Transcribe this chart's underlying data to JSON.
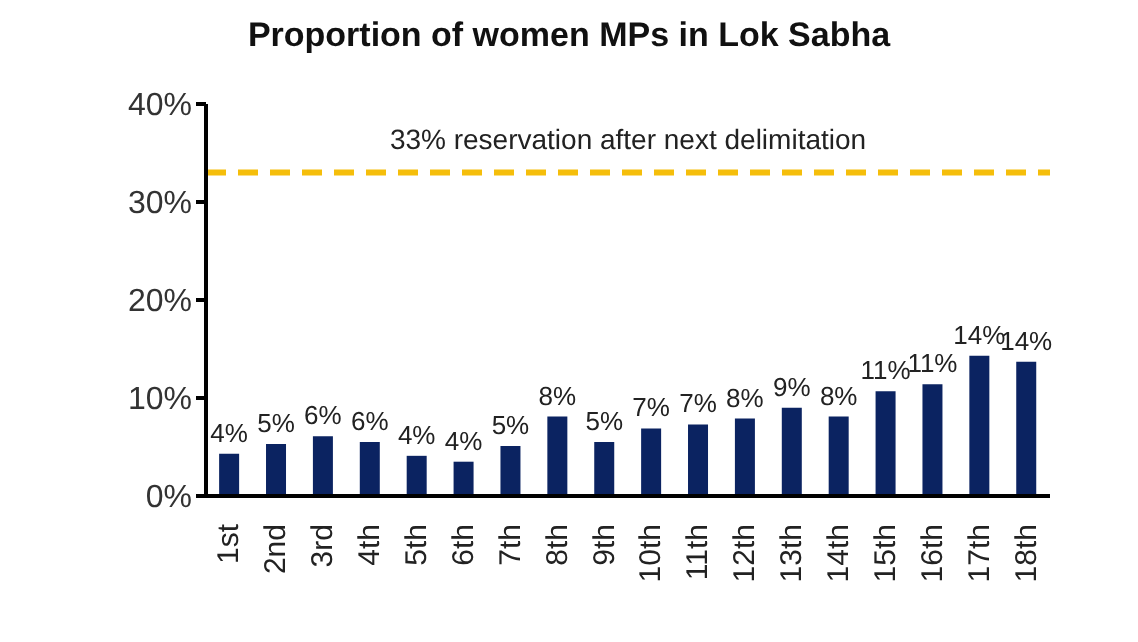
{
  "chart_data": {
    "type": "bar",
    "title": "Proportion of women MPs in Lok Sabha",
    "categories": [
      "1st",
      "2nd",
      "3rd",
      "4th",
      "5th",
      "6th",
      "7th",
      "8th",
      "9th",
      "10th",
      "11th",
      "12th",
      "13th",
      "14th",
      "15th",
      "16th",
      "17th",
      "18th"
    ],
    "values": [
      4.3,
      5.3,
      6.1,
      5.5,
      4.1,
      3.5,
      5.1,
      8.1,
      5.5,
      6.9,
      7.3,
      7.9,
      9.0,
      8.1,
      10.7,
      11.4,
      14.3,
      13.7
    ],
    "value_labels": [
      "4%",
      "5%",
      "6%",
      "6%",
      "4%",
      "4%",
      "5%",
      "8%",
      "5%",
      "7%",
      "7%",
      "8%",
      "9%",
      "8%",
      "11%",
      "11%",
      "14%",
      "14%"
    ],
    "color": "#0b2361",
    "ylim": [
      0,
      40
    ],
    "yticks": [
      {
        "value": 0,
        "label": "0%"
      },
      {
        "value": 10,
        "label": "10%"
      },
      {
        "value": 20,
        "label": "20%"
      },
      {
        "value": 30,
        "label": "30%"
      },
      {
        "value": 40,
        "label": "40%"
      }
    ],
    "ref_lines": [
      {
        "axis": "y",
        "value": 33,
        "label": "33% reservation after next delimitation",
        "color": "#f5be0b",
        "line_style": "dashed"
      }
    ],
    "grid": false,
    "legend": false
  }
}
